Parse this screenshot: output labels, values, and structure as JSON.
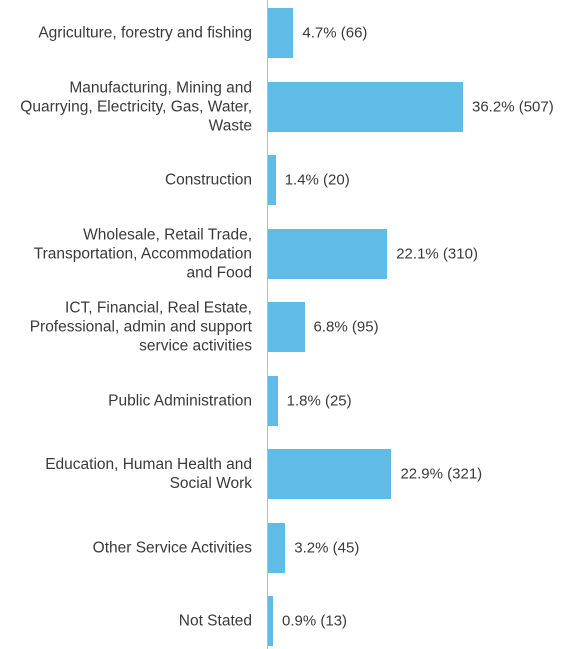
{
  "chart_data": {
    "type": "bar",
    "orientation": "horizontal",
    "categories": [
      "Agriculture, forestry and fishing",
      "Manufacturing, Mining and Quarrying, Electricity, Gas, Water, Waste",
      "Construction",
      "Wholesale, Retail Trade, Transportation, Accommodation and Food",
      "ICT, Financial, Real Estate, Professional, admin and support service activities",
      "Public Administration",
      "Education, Human Health and Social Work",
      "Other Service Activities",
      "Not Stated"
    ],
    "values": [
      66,
      507,
      20,
      310,
      95,
      25,
      321,
      45,
      13
    ],
    "value_labels": [
      "4.7% (66)",
      "36.2% (507)",
      "1.4% (20)",
      "22.1% (310)",
      "6.8% (95)",
      "1.8% (25)",
      "22.9% (321)",
      "3.2% (45)",
      "0.9% (13)"
    ],
    "color": "#5fbce6"
  }
}
